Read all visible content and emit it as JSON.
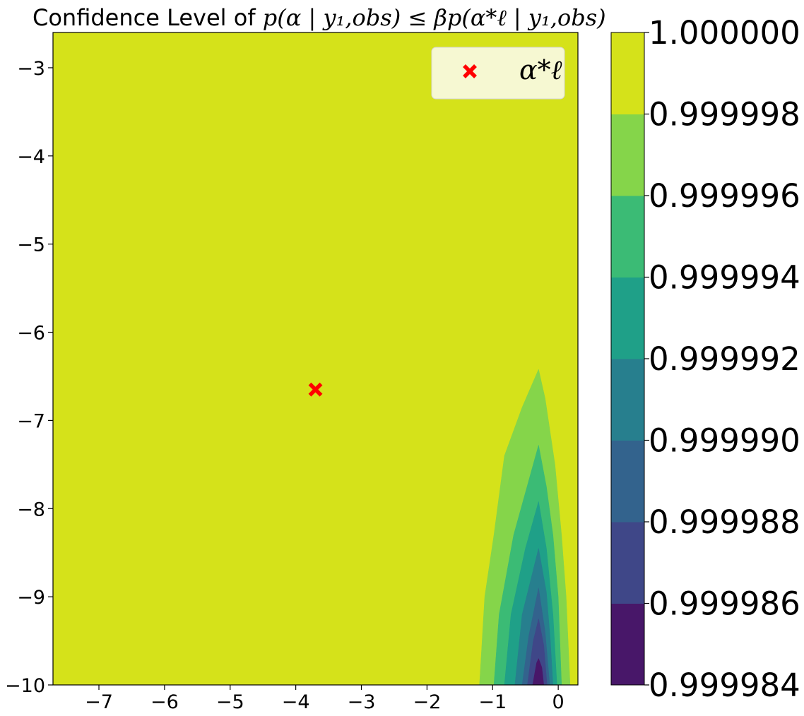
{
  "chart_data": {
    "type": "contourf",
    "title": {
      "prefix": "Confidence Level of ",
      "math": "p(α | y₁,obs) ≤ βp(α*ℓ | y₁,obs)"
    },
    "xlabel": "",
    "ylabel": "",
    "xlim": [
      -7.7,
      0.3
    ],
    "ylim": [
      -10,
      -2.6
    ],
    "xticks": [
      -7,
      -6,
      -5,
      -4,
      -3,
      -2,
      -1,
      0
    ],
    "xtick_labels": [
      "−7",
      "−6",
      "−5",
      "−4",
      "−3",
      "−2",
      "−1",
      "0"
    ],
    "yticks": [
      -3,
      -4,
      -5,
      -6,
      -7,
      -8,
      -9,
      -10
    ],
    "ytick_labels": [
      "−3",
      "−4",
      "−5",
      "−6",
      "−7",
      "−8",
      "−9",
      "−10"
    ],
    "levels": [
      0.999984,
      0.999986,
      0.999988,
      0.99999,
      0.999992,
      0.999994,
      0.999996,
      0.999998,
      1.0
    ],
    "colorbar_labels": [
      "1.000000",
      "0.999998",
      "0.999996",
      "0.999994",
      "0.999992",
      "0.999990",
      "0.999988",
      "0.999986",
      "0.999984"
    ],
    "band_colors": [
      "#481769",
      "#3f4788",
      "#33638d",
      "#277f8e",
      "#1fa088",
      "#3bbb75",
      "#85d54a",
      "#d5e21a"
    ],
    "contours": [
      {
        "lower_level": 0.999998,
        "color": "#85d54a",
        "points": [
          [
            -1.2,
            -10
          ],
          [
            -1.12,
            -9.0
          ],
          [
            -0.98,
            -8.3
          ],
          [
            -0.82,
            -7.4
          ],
          [
            -0.55,
            -6.85
          ],
          [
            -0.3,
            -6.42
          ],
          [
            -0.2,
            -6.75
          ],
          [
            -0.05,
            -7.5
          ],
          [
            0.05,
            -8.3
          ],
          [
            0.12,
            -9.0
          ],
          [
            0.18,
            -10
          ]
        ]
      },
      {
        "lower_level": 0.999996,
        "color": "#3bbb75",
        "points": [
          [
            -0.98,
            -10
          ],
          [
            -0.9,
            -9.2
          ],
          [
            -0.68,
            -8.3
          ],
          [
            -0.3,
            -7.28
          ],
          [
            -0.18,
            -7.75
          ],
          [
            -0.08,
            -8.3
          ],
          [
            0.0,
            -9.0
          ],
          [
            0.05,
            -10
          ]
        ]
      },
      {
        "lower_level": 0.999994,
        "color": "#1fa088",
        "points": [
          [
            -0.82,
            -10
          ],
          [
            -0.72,
            -9.2
          ],
          [
            -0.5,
            -8.45
          ],
          [
            -0.3,
            -7.92
          ],
          [
            -0.18,
            -8.45
          ],
          [
            -0.08,
            -9.2
          ],
          [
            -0.02,
            -10
          ]
        ]
      },
      {
        "lower_level": 0.999992,
        "color": "#277f8e",
        "points": [
          [
            -0.66,
            -10
          ],
          [
            -0.55,
            -9.2
          ],
          [
            -0.3,
            -8.45
          ],
          [
            -0.18,
            -8.95
          ],
          [
            -0.12,
            -9.5
          ],
          [
            -0.08,
            -10
          ]
        ]
      },
      {
        "lower_level": 0.99999,
        "color": "#33638d",
        "points": [
          [
            -0.55,
            -10
          ],
          [
            -0.45,
            -9.45
          ],
          [
            -0.3,
            -8.9
          ],
          [
            -0.2,
            -9.4
          ],
          [
            -0.13,
            -10
          ]
        ]
      },
      {
        "lower_level": 0.999988,
        "color": "#3f4788",
        "points": [
          [
            -0.47,
            -10
          ],
          [
            -0.38,
            -9.5
          ],
          [
            -0.3,
            -9.25
          ],
          [
            -0.22,
            -9.55
          ],
          [
            -0.17,
            -10
          ]
        ]
      },
      {
        "lower_level": 0.999986,
        "color": "#481769",
        "points": [
          [
            -0.39,
            -10
          ],
          [
            -0.33,
            -9.75
          ],
          [
            -0.3,
            -9.7
          ],
          [
            -0.25,
            -9.8
          ],
          [
            -0.22,
            -10
          ]
        ]
      }
    ],
    "background_color": "#d5e21a",
    "marker": {
      "x": -3.7,
      "y": -6.65,
      "color": "#ff0000",
      "symbol": "X"
    },
    "legend": {
      "position": "top-right",
      "entries": [
        {
          "label": "α*ℓ",
          "marker": "X",
          "color": "#ff0000"
        }
      ]
    }
  }
}
